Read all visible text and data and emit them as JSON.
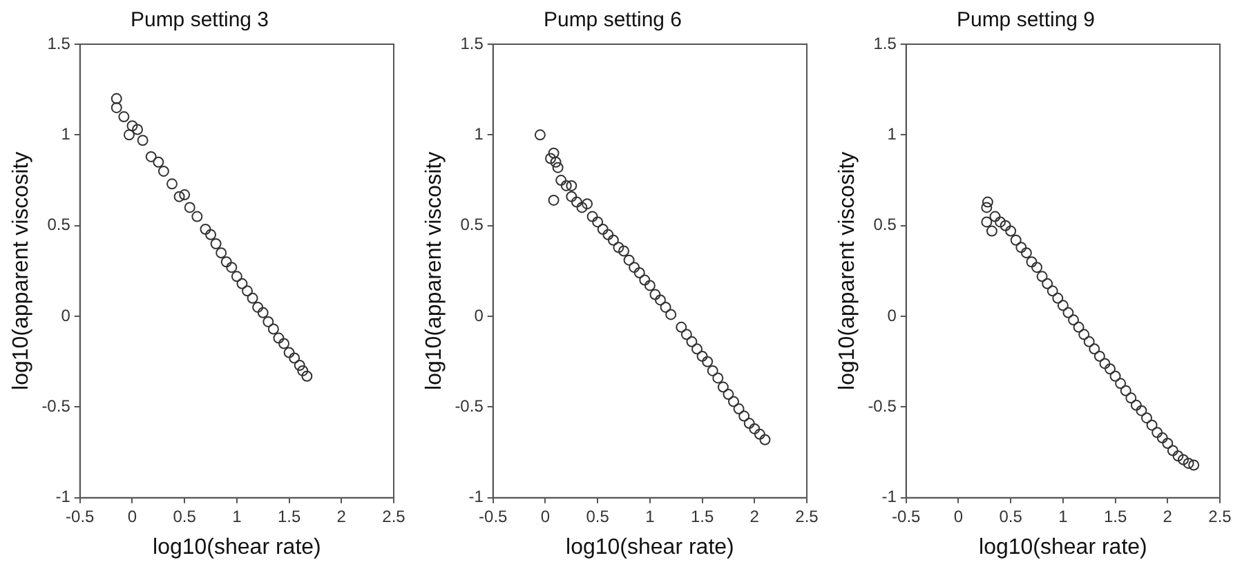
{
  "chart_data": [
    {
      "type": "scatter",
      "title": "Pump setting 3",
      "xlabel": "log10(shear rate)",
      "ylabel": "log10(apparent viscosity",
      "xlim": [
        -0.5,
        2.5
      ],
      "ylim": [
        -1,
        1.5
      ],
      "xticks": [
        -0.5,
        0,
        0.5,
        1,
        1.5,
        2,
        2.5
      ],
      "yticks": [
        -1,
        -0.5,
        0,
        0.5,
        1,
        1.5
      ],
      "marker": "circle",
      "grid": false,
      "legend": false,
      "series": [
        {
          "color": "#333333",
          "x": [
            -0.15,
            -0.15,
            -0.08,
            0,
            -0.03,
            0.05,
            0.1,
            0.18,
            0.25,
            0.3,
            0.38,
            0.45,
            0.5,
            0.55,
            0.62,
            0.7,
            0.75,
            0.8,
            0.85,
            0.9,
            0.95,
            1.0,
            1.05,
            1.1,
            1.15,
            1.2,
            1.25,
            1.3,
            1.35,
            1.4,
            1.45,
            1.5,
            1.55,
            1.6,
            1.63,
            1.67
          ],
          "values": [
            1.2,
            1.15,
            1.1,
            1.05,
            1.0,
            1.03,
            0.97,
            0.88,
            0.85,
            0.8,
            0.73,
            0.66,
            0.67,
            0.6,
            0.55,
            0.48,
            0.45,
            0.4,
            0.35,
            0.3,
            0.27,
            0.22,
            0.18,
            0.14,
            0.1,
            0.05,
            0.02,
            -0.03,
            -0.07,
            -0.12,
            -0.15,
            -0.2,
            -0.23,
            -0.27,
            -0.3,
            -0.33
          ]
        }
      ]
    },
    {
      "type": "scatter",
      "title": "Pump setting 6",
      "xlabel": "log10(shear rate)",
      "ylabel": "log10(apparent viscosity",
      "xlim": [
        -0.5,
        2.5
      ],
      "ylim": [
        -1,
        1.5
      ],
      "xticks": [
        -0.5,
        0,
        0.5,
        1,
        1.5,
        2,
        2.5
      ],
      "yticks": [
        -1,
        -0.5,
        0,
        0.5,
        1,
        1.5
      ],
      "marker": "circle",
      "grid": false,
      "legend": false,
      "series": [
        {
          "color": "#333333",
          "x": [
            -0.05,
            0.08,
            0.05,
            0.08,
            0.1,
            0.12,
            0.15,
            0.2,
            0.25,
            0.25,
            0.3,
            0.35,
            0.4,
            0.45,
            0.5,
            0.55,
            0.6,
            0.65,
            0.7,
            0.75,
            0.8,
            0.85,
            0.9,
            0.95,
            1.0,
            1.05,
            1.1,
            1.15,
            1.2,
            1.3,
            1.35,
            1.4,
            1.45,
            1.5,
            1.55,
            1.6,
            1.65,
            1.7,
            1.75,
            1.8,
            1.85,
            1.9,
            1.95,
            2.0,
            2.05,
            2.1
          ],
          "values": [
            1.0,
            0.64,
            0.87,
            0.9,
            0.85,
            0.82,
            0.75,
            0.72,
            0.72,
            0.66,
            0.63,
            0.6,
            0.62,
            0.55,
            0.52,
            0.48,
            0.45,
            0.42,
            0.38,
            0.36,
            0.31,
            0.27,
            0.24,
            0.2,
            0.17,
            0.12,
            0.09,
            0.05,
            0.01,
            -0.06,
            -0.1,
            -0.14,
            -0.18,
            -0.22,
            -0.25,
            -0.3,
            -0.34,
            -0.39,
            -0.43,
            -0.47,
            -0.51,
            -0.55,
            -0.59,
            -0.62,
            -0.65,
            -0.68
          ]
        }
      ]
    },
    {
      "type": "scatter",
      "title": "Pump setting 9",
      "xlabel": "log10(shear rate)",
      "ylabel": "log10(apparent viscosity",
      "xlim": [
        -0.5,
        2.5
      ],
      "ylim": [
        -1,
        1.5
      ],
      "xticks": [
        -0.5,
        0,
        0.5,
        1,
        1.5,
        2,
        2.5
      ],
      "yticks": [
        -1,
        -0.5,
        0,
        0.5,
        1,
        1.5
      ],
      "marker": "circle",
      "grid": false,
      "legend": false,
      "series": [
        {
          "color": "#333333",
          "x": [
            0.28,
            0.27,
            0.27,
            0.32,
            0.35,
            0.4,
            0.45,
            0.5,
            0.55,
            0.6,
            0.65,
            0.7,
            0.75,
            0.8,
            0.85,
            0.9,
            0.95,
            1.0,
            1.05,
            1.1,
            1.15,
            1.2,
            1.25,
            1.3,
            1.35,
            1.4,
            1.45,
            1.5,
            1.55,
            1.6,
            1.65,
            1.7,
            1.75,
            1.8,
            1.85,
            1.9,
            1.95,
            2.0,
            2.05,
            2.1,
            2.15,
            2.2,
            2.25
          ],
          "values": [
            0.63,
            0.6,
            0.52,
            0.47,
            0.55,
            0.52,
            0.5,
            0.47,
            0.42,
            0.38,
            0.35,
            0.3,
            0.27,
            0.22,
            0.18,
            0.14,
            0.1,
            0.06,
            0.02,
            -0.02,
            -0.06,
            -0.1,
            -0.14,
            -0.18,
            -0.22,
            -0.26,
            -0.29,
            -0.33,
            -0.37,
            -0.41,
            -0.45,
            -0.49,
            -0.52,
            -0.56,
            -0.6,
            -0.64,
            -0.67,
            -0.7,
            -0.74,
            -0.77,
            -0.79,
            -0.81,
            -0.82
          ]
        }
      ]
    }
  ]
}
